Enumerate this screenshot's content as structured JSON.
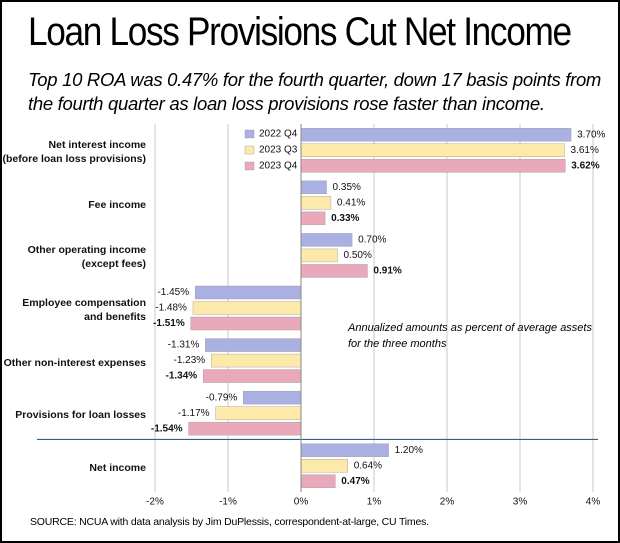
{
  "chart_data": {
    "type": "barh",
    "title": "Loan Loss Provisions Cut Net Income",
    "subtitle": "Top 10 ROA was 0.47% for the fourth quarter, down 17 basis points from the fourth quarter as loan loss provisions rose faster than income.",
    "annotation": "Annualized amounts as percent of average assets\nfor the three months",
    "source": "SOURCE: NCUA with data analysis by Jim DuPlessis, correspondent-at-large, CU Times.",
    "categories": [
      "Net interest income\n(before loan loss provisions)",
      "Fee income",
      "Other operating income\n(except fees)",
      "Employee compensation\nand benefits",
      "Other non-interest expenses",
      "Provisions for loan losses",
      "Net income"
    ],
    "series": [
      {
        "name": "2022 Q4",
        "color": "#aab0e2",
        "values": [
          3.7,
          0.35,
          0.7,
          -1.45,
          -1.31,
          -0.79,
          1.2
        ],
        "value_labels": [
          "3.70%",
          "0.35%",
          "0.70%",
          "-1.45%",
          "-1.31%",
          "-0.79%",
          "1.20%"
        ]
      },
      {
        "name": "2023 Q3",
        "color": "#fde9aa",
        "values": [
          3.61,
          0.41,
          0.5,
          -1.48,
          -1.23,
          -1.17,
          0.64
        ],
        "value_labels": [
          "3.61%",
          "0.41%",
          "0.50%",
          "-1.48%",
          "-1.23%",
          "-1.17%",
          "0.64%"
        ]
      },
      {
        "name": "2023 Q4",
        "color": "#eaa8bb",
        "values": [
          3.62,
          0.33,
          0.91,
          -1.51,
          -1.34,
          -1.54,
          0.47
        ],
        "value_labels": [
          "3.62%",
          "0.33%",
          "0.91%",
          "-1.51%",
          "-1.34%",
          "-1.54%",
          "0.47%"
        ]
      }
    ],
    "xlim": [
      -2,
      4
    ],
    "xticks": [
      {
        "value": -2,
        "label": "-2%"
      },
      {
        "value": -1,
        "label": "-1%"
      },
      {
        "value": 0,
        "label": "0%"
      },
      {
        "value": 1,
        "label": "1%"
      },
      {
        "value": 2,
        "label": "2%"
      },
      {
        "value": 3,
        "label": "3%"
      },
      {
        "value": 4,
        "label": "4%"
      }
    ],
    "grid": true,
    "legend": "upper left"
  }
}
